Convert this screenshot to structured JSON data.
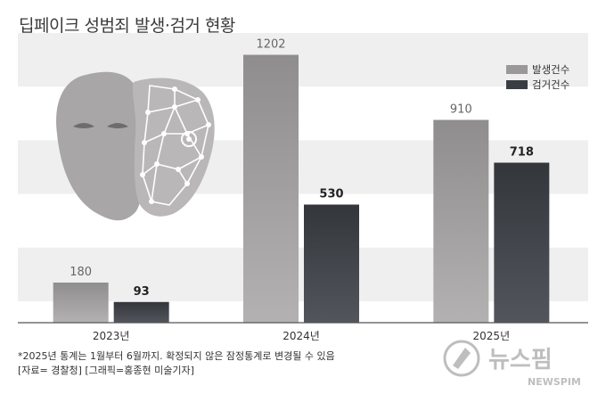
{
  "title": "딥페이크 성범죄 발생·검거 현황",
  "colors": {
    "report": "#9a9898",
    "arrest": "#3a3d42",
    "band": "#efefef",
    "baseline": "#555555"
  },
  "chart_data": {
    "type": "bar",
    "categories": [
      "2023년",
      "2024년",
      "2025년"
    ],
    "series": [
      {
        "name": "발생건수",
        "values": [
          180,
          1202,
          910
        ]
      },
      {
        "name": "검거건수",
        "values": [
          93,
          530,
          718
        ]
      }
    ],
    "ylim": [
      0,
      1300
    ],
    "grid": "horizontal bands",
    "legend": "top-right"
  },
  "footnote": {
    "line1": "*2025년 통계는 1월부터 6월까지. 확정되지 않은 잠정통계로 변경될 수 있음",
    "line2": "[자료= 경찰청] [그래픽=홍종현 미술기자]"
  },
  "watermark": {
    "name": "뉴스핌",
    "latin": "NEWSPIM"
  }
}
